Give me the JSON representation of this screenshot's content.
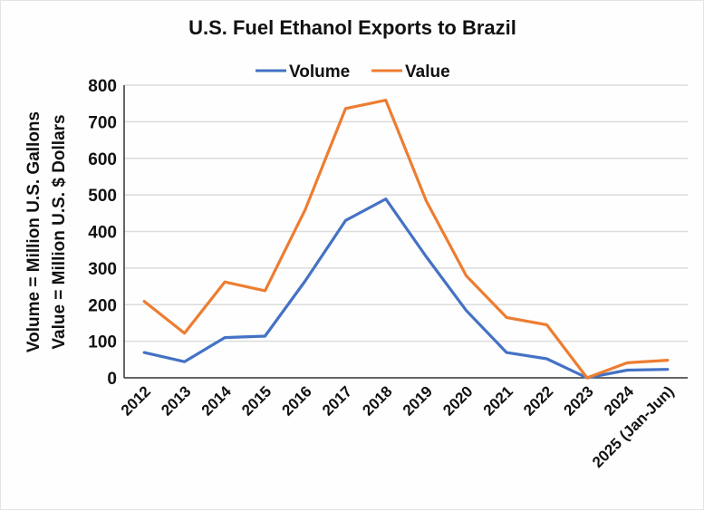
{
  "chart_data": {
    "type": "line",
    "title": "U.S. Fuel Ethanol Exports to Brazil",
    "xlabel": "",
    "ylabel": [
      "Volume = Million U.S. Gallons",
      "Value = Million U.S. $ Dollars"
    ],
    "categories": [
      "2012",
      "2013",
      "2014",
      "2015",
      "2016",
      "2017",
      "2018",
      "2019",
      "2020",
      "2021",
      "2022",
      "2023",
      "2024",
      "2025 (Jan-Jun)"
    ],
    "series": [
      {
        "name": "Volume",
        "color": "#4472C4",
        "values": [
          69,
          44,
          110,
          114,
          265,
          430,
          489,
          332,
          184,
          69,
          52,
          0,
          21,
          23
        ]
      },
      {
        "name": "Value",
        "color": "#ED7D31",
        "values": [
          209,
          122,
          262,
          238,
          460,
          736,
          759,
          485,
          279,
          165,
          145,
          0,
          41,
          48
        ]
      }
    ],
    "ylim": [
      0,
      800
    ],
    "yticks": [
      "0",
      "100",
      "200",
      "300",
      "400",
      "500",
      "600",
      "700",
      "800"
    ],
    "grid": "horizontal",
    "legend": "top-center"
  }
}
